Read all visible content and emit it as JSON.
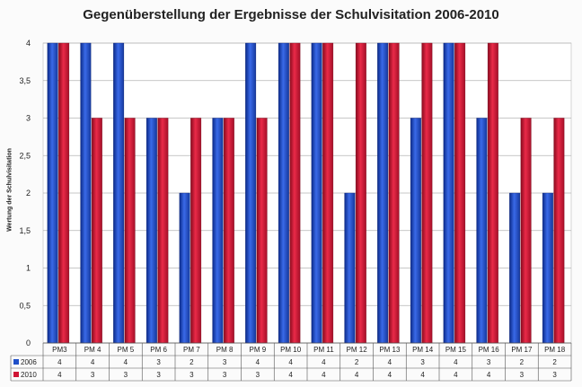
{
  "chart_data": {
    "type": "bar",
    "title": "Gegenüberstellung der Ergebnisse der Schulvisitation 2006-2010",
    "xlabel": "",
    "ylabel": "Wertung der Schulvisitation",
    "ylim": [
      0,
      4
    ],
    "yticks": [
      "0",
      "0,5",
      "1",
      "1,5",
      "2",
      "2,5",
      "3",
      "3,5",
      "4"
    ],
    "grid": true,
    "legend": "data-table-left",
    "categories": [
      "PM3",
      "PM 4",
      "PM 5",
      "PM 6",
      "PM 7",
      "PM 8",
      "PM 9",
      "PM 10",
      "PM 11",
      "PM 12",
      "PM 13",
      "PM 14",
      "PM 15",
      "PM 16",
      "PM 17",
      "PM 18"
    ],
    "series": [
      {
        "name": "2006",
        "color": "#1f4fc8",
        "values": [
          4,
          4,
          4,
          3,
          2,
          3,
          4,
          4,
          4,
          2,
          4,
          3,
          4,
          3,
          2,
          2
        ]
      },
      {
        "name": "2010",
        "color": "#d01535",
        "values": [
          4,
          3,
          3,
          3,
          3,
          3,
          3,
          4,
          4,
          4,
          4,
          4,
          4,
          4,
          3,
          3
        ]
      }
    ]
  }
}
